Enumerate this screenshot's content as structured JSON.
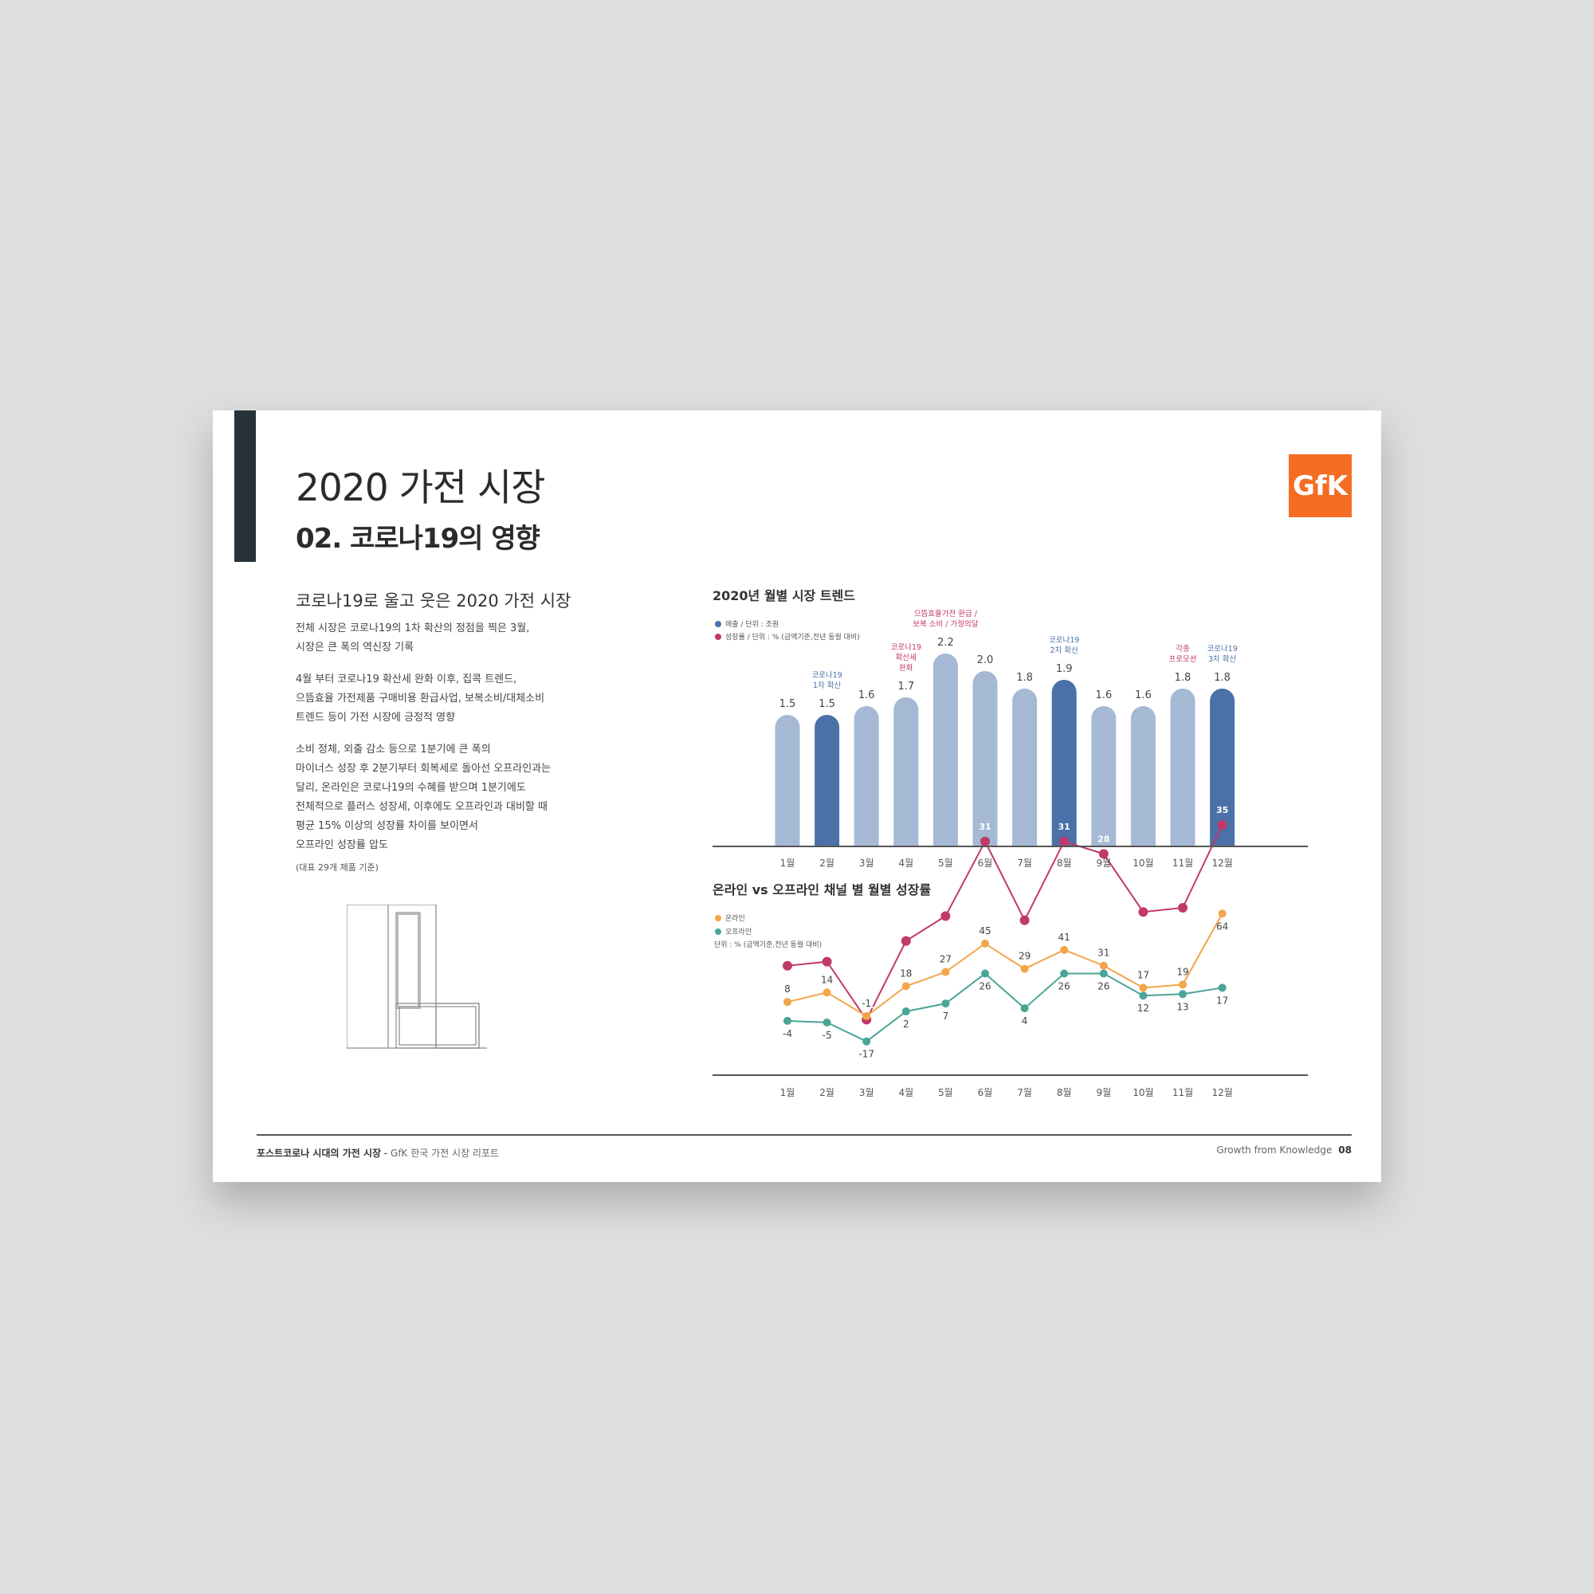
{
  "header": {
    "title": "2020 가전 시장",
    "subtitle": "02. 코로나19의 영향",
    "logo_text": "GfK",
    "brand_color": "#f46d22"
  },
  "left": {
    "heading": "코로나19로 울고 웃은 2020 가전 시장",
    "paragraphs": [
      [
        "전체 시장은 코로나19의 1차 확산의 정점을 찍은 3월,",
        "시장은 큰 폭의 역신장 기록"
      ],
      [
        "4월 부터 코로나19 확산세 완화 이후, 집콕 트렌드,",
        "으뜸효율 가전제품 구매비용 환급사업, 보복소비/대체소비",
        "트렌드 등이 가전 시장에 긍정적 영향"
      ],
      [
        "소비 정체, 외출 감소 등으로 1분기에 큰 폭의",
        "마이너스 성장 후 2분기부터 회복세로 돌아선 오프라인과는",
        "달리, 온라인은 코로나19의 수혜를 받으며 1분기에도",
        "전체적으로 플러스 성장세, 이후에도 오프라인과 대비할 때",
        "평균 15% 이상의 성장률 차이를 보이면서",
        "오프라인 성장률 압도"
      ]
    ],
    "note": "(대표 29개 제품 기준)",
    "illustration_icon": "refrigerator-outline-icon"
  },
  "chart_data": [
    {
      "type": "bar",
      "title": "2020년 월별 시장 트렌드",
      "legend": [
        {
          "label": "매출 / 단위 : 조원",
          "color": "#4a72a8"
        },
        {
          "label": "성장률 / 단위 : % (금액기준,전년 동월 대비)",
          "color": "#c0396a"
        }
      ],
      "categories": [
        "1월",
        "2월",
        "3월",
        "4월",
        "5월",
        "6월",
        "7월",
        "8월",
        "9월",
        "10월",
        "11월",
        "12월"
      ],
      "series": [
        {
          "name": "매출",
          "values": [
            1.5,
            1.5,
            1.6,
            1.7,
            2.2,
            2.0,
            1.8,
            1.9,
            1.6,
            1.6,
            1.8,
            1.8
          ],
          "value_labels": [
            "1.5",
            "1.5",
            "1.6",
            "1.7",
            "2.2",
            "2.0",
            "1.8",
            "1.9",
            "1.6",
            "1.6",
            "1.8",
            "1.8"
          ],
          "highlight_months": [
            2,
            8,
            12
          ],
          "color": "#a5b9d4",
          "highlight_color": "#4a72a8"
        },
        {
          "name": "성장률",
          "values": [
            1,
            2,
            -12,
            7,
            13,
            31,
            12,
            31,
            28,
            14,
            15,
            35
          ],
          "color": "#c0396a"
        }
      ],
      "annotations": [
        {
          "month": 2,
          "lines": [
            "코로나19",
            "1차 확산"
          ],
          "color": "#4a72a8"
        },
        {
          "month": 4,
          "lines": [
            "코로나19",
            "확산세",
            "완화"
          ],
          "color": "#c0396a"
        },
        {
          "month": 5,
          "lines": [
            "으뜸효율가전 환급 /",
            "보복 소비 / 가정의달"
          ],
          "color": "#c0396a"
        },
        {
          "month": 8,
          "lines": [
            "코로나19",
            "2차 확산"
          ],
          "color": "#4a72a8"
        },
        {
          "month": 11,
          "lines": [
            "각종",
            "프로모션"
          ],
          "color": "#c0396a"
        },
        {
          "month": 12,
          "lines": [
            "코로나19",
            "3차 확산"
          ],
          "color": "#4a72a8"
        }
      ]
    },
    {
      "type": "line",
      "title": "온라인 vs 오프라인 채널 별 월별 성장률",
      "legend": [
        {
          "label": "온라인",
          "color": "#f2a54a"
        },
        {
          "label": "오프라인",
          "color": "#4aa596"
        }
      ],
      "unit_note": "단위 : % (금액기준,전년 동월 대비)",
      "categories": [
        "1월",
        "2월",
        "3월",
        "4월",
        "5월",
        "6월",
        "7월",
        "8월",
        "9월",
        "10월",
        "11월",
        "12월"
      ],
      "series": [
        {
          "name": "온라인",
          "values": [
            8,
            14,
            -1,
            18,
            27,
            45,
            29,
            41,
            31,
            17,
            19,
            64
          ],
          "color": "#f2a54a"
        },
        {
          "name": "오프라인",
          "values": [
            -4,
            -5,
            -17,
            2,
            7,
            26,
            4,
            26,
            26,
            12,
            13,
            17
          ],
          "color": "#4aa596"
        }
      ]
    }
  ],
  "footer": {
    "left_bold": "포스트코로나 시대의 가전 시장",
    "left_sep": " - ",
    "left_light": "GfK 한국 가전 시장 리포트",
    "right_text": "Growth from Knowledge",
    "page_number": "08"
  }
}
